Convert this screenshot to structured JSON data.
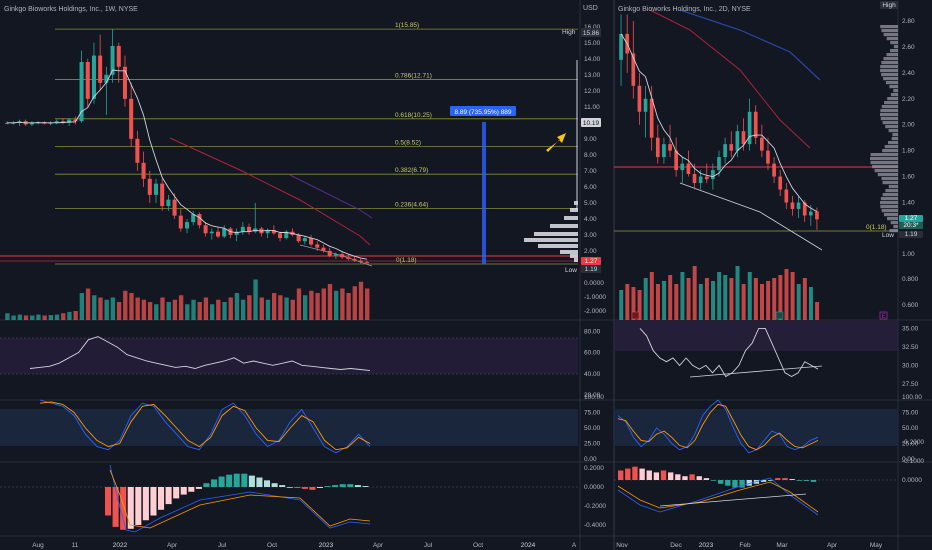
{
  "colors": {
    "background": "#131722",
    "up": "#26a69a",
    "down": "#ef5350",
    "fib": "#9aa33a",
    "ma_white": "#d1d4dc",
    "ma_red": "#b2223a",
    "ma_purple": "#5b2c8f",
    "ma_blue": "#2946a6",
    "hline_red": "#f23645",
    "label_blue": "#2962ff",
    "arrow": "#f5c518",
    "axis_text": "#b2b5be",
    "rsi_band": "#2a2040",
    "stoch_band": "#1b2a44",
    "stoch_k": "#2962ff",
    "stoch_d": "#ff9800",
    "hist_pos": "#26a69a",
    "hist_pos_light": "#b2dfdb",
    "hist_neg": "#ef5350",
    "hist_neg_light": "#ffcdd2"
  },
  "left": {
    "title": "Ginkgo Bioworks Holdings, Inc., 1W, NYSE",
    "price_axis_label": "USD",
    "price_ticks": [
      "16.00",
      "15.00",
      "14.00",
      "13.00",
      "12.00",
      "11.00",
      "10.00",
      "9.00",
      "8.00",
      "7.00",
      "6.00",
      "5.00",
      "4.00",
      "3.00",
      "2.00"
    ],
    "high_label": "High",
    "high_value": "15.86",
    "current_value": "10.19",
    "last_price": "1.27",
    "low_label": "Low",
    "low_value": "1.19",
    "measure_label": "8.89 (735.95%) 889",
    "fib_levels": [
      {
        "label": "1(15.85)",
        "value": 15.85
      },
      {
        "label": "0.786(12.71)",
        "value": 12.71
      },
      {
        "label": "0.618(10.25)",
        "value": 10.25
      },
      {
        "label": "0.5(8.52)",
        "value": 8.52
      },
      {
        "label": "0.382(6.79)",
        "value": 6.79
      },
      {
        "label": "0.236(4.64)",
        "value": 4.64
      },
      {
        "label": "0(1.18)",
        "value": 1.18
      }
    ],
    "volume_ticks": [
      "0.0000",
      "-1.0000",
      "-2.0000"
    ],
    "rsi_ticks": [
      "80.00",
      "60.00",
      "40.00",
      "20.00"
    ],
    "stoch_ticks": [
      "100.00",
      "75.00",
      "50.00",
      "25.00",
      "0.00"
    ],
    "macd_ticks": [
      "0.2000",
      "0.0000",
      "-0.2000",
      "-0.4000"
    ],
    "time_labels": [
      "Aug",
      "11",
      "2022",
      "Apr",
      "Jul",
      "Oct",
      "2023",
      "Apr",
      "Jul",
      "Oct",
      "2024",
      "A"
    ]
  },
  "right": {
    "title": "Ginkgo Bioworks Holdings, Inc., 2D, NYSE",
    "high_label": "High",
    "price_ticks": [
      "2.80",
      "2.60",
      "2.40",
      "2.20",
      "2.00",
      "1.80",
      "1.60",
      "1.40",
      "1.20",
      "1.00",
      "0.800",
      "0.600"
    ],
    "last_price": "1.27",
    "last_sub": "20:3*",
    "low_label": "Low",
    "low_value": "1.19",
    "fib_zero_label": "0(1.18)",
    "badge": "E",
    "rsi_ticks": [
      "35.00",
      "32.50",
      "30.00",
      "27.50"
    ],
    "stoch_ticks": [
      "100.00",
      "75.00",
      "50.00",
      "25.00",
      "0.00"
    ],
    "macd_ticks": [
      "0.0000",
      "-0.1000",
      "-0.2000"
    ],
    "time_labels": [
      "Nov",
      "Dec",
      "2023",
      "Feb",
      "Mar",
      "Apr",
      "May"
    ]
  },
  "chart_data": [
    {
      "type": "candlestick",
      "title": "Ginkgo Bioworks Holdings, Inc., 1W, NYSE",
      "ylabel": "USD",
      "ylim": [
        1.0,
        17.0
      ],
      "candles_ohlc": [
        [
          10,
          10.1,
          9.9,
          10
        ],
        [
          10,
          10.1,
          9.9,
          10
        ],
        [
          10,
          10.2,
          9.8,
          10.1
        ],
        [
          10.1,
          10.2,
          9.8,
          9.9
        ],
        [
          9.9,
          10.1,
          9.8,
          10
        ],
        [
          10,
          10.1,
          9.9,
          10.05
        ],
        [
          10.05,
          10.1,
          9.9,
          9.95
        ],
        [
          9.95,
          10.1,
          9.85,
          10.0
        ],
        [
          10,
          10.2,
          9.9,
          10.1
        ],
        [
          10.1,
          10.3,
          9.9,
          10.0
        ],
        [
          10,
          10.3,
          9.8,
          10.2
        ],
        [
          10.2,
          10.4,
          9.9,
          10.1
        ],
        [
          10.1,
          14.5,
          10,
          13.8
        ],
        [
          13.8,
          14.0,
          11.0,
          11.5
        ],
        [
          11.5,
          15.0,
          11.2,
          14.2
        ],
        [
          14.2,
          15.5,
          12.0,
          12.5
        ],
        [
          12.5,
          13.5,
          10.5,
          13.0
        ],
        [
          13,
          15.86,
          12.5,
          14.8
        ],
        [
          14.8,
          15.0,
          12.5,
          13.5
        ],
        [
          13.5,
          14.2,
          11.0,
          11.5
        ],
        [
          11.5,
          12.5,
          8.5,
          9.0
        ],
        [
          9,
          9.5,
          7.0,
          7.5
        ],
        [
          7.5,
          8.2,
          6.0,
          6.5
        ],
        [
          6.5,
          7.0,
          5.0,
          5.5
        ],
        [
          5.5,
          6.5,
          5.0,
          6.2
        ],
        [
          6.2,
          6.5,
          4.5,
          4.8
        ],
        [
          4.8,
          5.5,
          4.5,
          5.2
        ],
        [
          5.2,
          5.6,
          4.0,
          4.2
        ],
        [
          4.2,
          4.6,
          3.2,
          3.4
        ],
        [
          3.4,
          4.0,
          3.1,
          3.8
        ],
        [
          3.8,
          4.5,
          3.6,
          4.3
        ],
        [
          4.3,
          4.4,
          3.4,
          3.6
        ],
        [
          3.6,
          3.8,
          2.9,
          3.1
        ],
        [
          3.1,
          3.4,
          2.7,
          3.2
        ],
        [
          3.2,
          3.5,
          2.8,
          2.9
        ],
        [
          2.9,
          3.6,
          2.8,
          3.4
        ],
        [
          3.4,
          3.5,
          2.8,
          3.0
        ],
        [
          3.0,
          3.4,
          2.6,
          3.2
        ],
        [
          3.2,
          3.8,
          3.0,
          3.5
        ],
        [
          3.5,
          3.7,
          3.0,
          3.2
        ],
        [
          3.2,
          5.0,
          3.1,
          3.4
        ],
        [
          3.4,
          3.5,
          2.9,
          3.1
        ],
        [
          3.1,
          3.4,
          2.8,
          3.3
        ],
        [
          3.3,
          3.6,
          3.0,
          3.1
        ],
        [
          3.1,
          3.2,
          2.6,
          2.8
        ],
        [
          2.8,
          3.3,
          2.7,
          3.2
        ],
        [
          3.2,
          3.4,
          2.9,
          3.0
        ],
        [
          3.0,
          3.1,
          2.5,
          2.6
        ],
        [
          2.6,
          2.9,
          2.4,
          2.8
        ],
        [
          2.8,
          3.0,
          2.3,
          2.4
        ],
        [
          2.4,
          2.6,
          2.0,
          2.2
        ],
        [
          2.2,
          2.4,
          1.9,
          2.0
        ],
        [
          2.0,
          2.2,
          1.6,
          1.7
        ],
        [
          1.7,
          1.9,
          1.5,
          1.8
        ],
        [
          1.8,
          2.0,
          1.5,
          1.6
        ],
        [
          1.6,
          1.8,
          1.4,
          1.5
        ],
        [
          1.5,
          1.7,
          1.3,
          1.4
        ],
        [
          1.4,
          1.5,
          1.19,
          1.3
        ],
        [
          1.3,
          1.4,
          1.2,
          1.27
        ]
      ],
      "volume_relative": [
        0.15,
        0.1,
        0.12,
        0.1,
        0.1,
        0.12,
        0.1,
        0.11,
        0.12,
        0.15,
        0.18,
        0.2,
        0.6,
        0.7,
        0.55,
        0.5,
        0.45,
        0.5,
        0.4,
        0.65,
        0.6,
        0.5,
        0.45,
        0.4,
        0.35,
        0.5,
        0.4,
        0.45,
        0.55,
        0.35,
        0.45,
        0.4,
        0.5,
        0.35,
        0.45,
        0.4,
        0.5,
        0.6,
        0.45,
        0.55,
        0.9,
        0.5,
        0.45,
        0.6,
        0.55,
        0.5,
        0.45,
        0.7,
        0.55,
        0.65,
        0.6,
        0.7,
        0.8,
        0.65,
        0.7,
        0.6,
        0.75,
        0.85,
        0.7
      ],
      "rsi": [
        45,
        46,
        47,
        50,
        55,
        60,
        72,
        75,
        70,
        65,
        58,
        55,
        52,
        50,
        48,
        46,
        47,
        45,
        48,
        50,
        52,
        55,
        50,
        52,
        50,
        48,
        50,
        52,
        48,
        47,
        46,
        45,
        44,
        45,
        44,
        43
      ],
      "stoch_k": [
        95,
        90,
        85,
        70,
        40,
        20,
        15,
        30,
        70,
        90,
        85,
        60,
        40,
        20,
        15,
        40,
        80,
        90,
        70,
        40,
        20,
        30,
        60,
        80,
        50,
        20,
        10,
        20,
        40,
        20
      ],
      "stoch_d": [
        90,
        92,
        88,
        75,
        50,
        30,
        20,
        25,
        60,
        85,
        88,
        70,
        50,
        30,
        20,
        35,
        70,
        85,
        78,
        50,
        30,
        28,
        50,
        70,
        60,
        30,
        15,
        18,
        35,
        25
      ],
      "macd_hist": [
        -0.3,
        -0.42,
        -0.45,
        -0.44,
        -0.4,
        -0.35,
        -0.3,
        -0.24,
        -0.18,
        -0.12,
        -0.08,
        -0.05,
        -0.02,
        0.04,
        0.08,
        0.11,
        0.13,
        0.14,
        0.14,
        0.12,
        0.1,
        0.07,
        0.04,
        0.02,
        0.0,
        -0.01,
        -0.02,
        -0.03,
        -0.01,
        0.01,
        0.02,
        0.03,
        0.03,
        0.02,
        0.01
      ]
    },
    {
      "type": "candlestick",
      "title": "Ginkgo Bioworks Holdings, Inc., 2D, NYSE",
      "ylabel": "USD",
      "ylim": [
        0.6,
        2.9
      ],
      "candles_ohlc": [
        [
          2.5,
          2.85,
          2.3,
          2.7
        ],
        [
          2.7,
          2.85,
          2.4,
          2.55
        ],
        [
          2.55,
          2.8,
          2.2,
          2.3
        ],
        [
          2.3,
          2.4,
          2.0,
          2.1
        ],
        [
          2.1,
          2.3,
          1.9,
          2.2
        ],
        [
          2.2,
          2.3,
          1.8,
          1.9
        ],
        [
          1.9,
          2.0,
          1.7,
          1.75
        ],
        [
          1.75,
          1.9,
          1.7,
          1.85
        ],
        [
          1.85,
          2.0,
          1.75,
          1.8
        ],
        [
          1.8,
          1.9,
          1.6,
          1.65
        ],
        [
          1.65,
          1.75,
          1.55,
          1.7
        ],
        [
          1.7,
          1.8,
          1.6,
          1.62
        ],
        [
          1.62,
          1.7,
          1.5,
          1.55
        ],
        [
          1.55,
          1.65,
          1.5,
          1.6
        ],
        [
          1.6,
          1.7,
          1.55,
          1.58
        ],
        [
          1.58,
          1.7,
          1.5,
          1.65
        ],
        [
          1.65,
          1.8,
          1.6,
          1.75
        ],
        [
          1.75,
          1.9,
          1.7,
          1.85
        ],
        [
          1.85,
          1.95,
          1.75,
          1.8
        ],
        [
          1.8,
          2.0,
          1.75,
          1.95
        ],
        [
          1.95,
          2.05,
          1.8,
          1.85
        ],
        [
          1.85,
          2.2,
          1.8,
          2.1
        ],
        [
          2.1,
          2.15,
          1.85,
          1.9
        ],
        [
          1.9,
          2.0,
          1.75,
          1.8
        ],
        [
          1.8,
          1.9,
          1.65,
          1.7
        ],
        [
          1.7,
          1.75,
          1.55,
          1.6
        ],
        [
          1.6,
          1.65,
          1.45,
          1.5
        ],
        [
          1.5,
          1.55,
          1.35,
          1.4
        ],
        [
          1.4,
          1.45,
          1.3,
          1.35
        ],
        [
          1.35,
          1.45,
          1.28,
          1.4
        ],
        [
          1.4,
          1.42,
          1.25,
          1.3
        ],
        [
          1.3,
          1.38,
          1.22,
          1.33
        ],
        [
          1.33,
          1.36,
          1.19,
          1.27
        ]
      ],
      "volume_relative": [
        0.5,
        0.6,
        0.55,
        0.5,
        0.7,
        0.8,
        0.6,
        0.65,
        0.75,
        0.6,
        0.8,
        0.7,
        0.9,
        0.6,
        0.7,
        0.65,
        0.8,
        0.75,
        0.7,
        0.9,
        0.6,
        0.8,
        0.7,
        0.6,
        0.65,
        0.7,
        0.75,
        0.85,
        0.8,
        0.6,
        0.7,
        0.55,
        0.3
      ],
      "rsi": [
        35,
        34,
        32,
        31,
        30.5,
        31,
        30,
        31,
        30,
        29.5,
        30,
        29,
        30,
        28.5,
        29,
        30,
        32,
        33,
        35,
        35,
        33,
        31,
        29,
        28.5,
        29,
        30.5,
        30,
        29.5
      ],
      "stoch_k": [
        70,
        60,
        35,
        20,
        30,
        50,
        40,
        25,
        15,
        20,
        40,
        70,
        85,
        95,
        80,
        50,
        25,
        10,
        15,
        30,
        45,
        40,
        20,
        15,
        20,
        30,
        35
      ],
      "stoch_d": [
        65,
        62,
        45,
        30,
        28,
        40,
        45,
        35,
        22,
        18,
        30,
        55,
        75,
        88,
        85,
        62,
        38,
        20,
        15,
        22,
        35,
        42,
        30,
        20,
        18,
        24,
        30
      ],
      "macd_hist": [
        -0.05,
        -0.06,
        -0.07,
        -0.06,
        -0.05,
        -0.04,
        -0.05,
        -0.04,
        -0.03,
        -0.02,
        -0.03,
        -0.02,
        -0.01,
        0.0,
        0.02,
        0.03,
        0.04,
        0.04,
        0.03,
        0.02,
        0.01,
        0.0,
        -0.01,
        -0.01,
        -0.005,
        0.0,
        0.005,
        0.01
      ]
    }
  ]
}
